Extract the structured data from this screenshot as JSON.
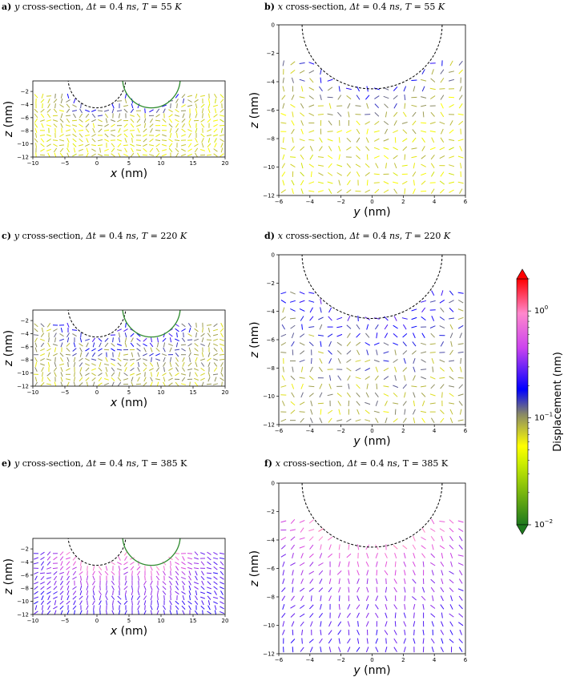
{
  "chart_data": [
    {
      "panel_id": "a",
      "type": "quiver",
      "title": {
        "letter": "a)",
        "parts": [
          "y",
          " cross-section, ",
          "Δt",
          " = 0.4 ",
          "ns",
          ", ",
          "T",
          " = 55 ",
          "K"
        ]
      },
      "title_text": "y cross-section, Δt = 0.4 ns, T = 55 K",
      "xlabel": "x (nm)",
      "ylabel": "z (nm)",
      "xlim": [
        -10,
        20
      ],
      "ylim": [
        -12,
        -0.4
      ],
      "xticks": [
        -10,
        -5,
        0,
        5,
        10,
        15,
        20
      ],
      "yticks": [
        -2,
        -4,
        -6,
        -8,
        -10,
        -12
      ],
      "circles": [
        {
          "center": [
            0,
            0
          ],
          "radius": 4.5,
          "style": "dashed",
          "color": "#000000"
        },
        {
          "center": [
            8.5,
            0
          ],
          "radius": 4.5,
          "style": "solid",
          "color": "#2e8b2e"
        }
      ],
      "displacement_level": 0.04,
      "variability": "high"
    },
    {
      "panel_id": "b",
      "type": "quiver",
      "title": {
        "letter": "b)",
        "parts": [
          "x",
          " cross-section, ",
          "Δt",
          " = 0.4 ",
          "ns",
          ", ",
          "T",
          " = 55 ",
          "K"
        ]
      },
      "title_text": "x cross-section, Δt = 0.4 ns, T = 55 K",
      "xlabel": "y (nm)",
      "ylabel": "z (nm)",
      "xlim": [
        -6,
        6
      ],
      "ylim": [
        -12,
        0
      ],
      "xticks": [
        -6,
        -4,
        -2,
        0,
        2,
        4,
        6
      ],
      "yticks": [
        0,
        -2,
        -4,
        -6,
        -8,
        -10,
        -12
      ],
      "circles": [
        {
          "center": [
            0,
            0
          ],
          "radius": 4.5,
          "style": "dashed",
          "color": "#000000"
        }
      ],
      "displacement_level": 0.04,
      "variability": "high"
    },
    {
      "panel_id": "c",
      "type": "quiver",
      "title": {
        "letter": "c)",
        "parts": [
          "y",
          " cross-section, ",
          "Δt",
          " = 0.4 ",
          "ns",
          ", ",
          "T",
          " = 220 ",
          "K"
        ]
      },
      "title_text": "y cross-section, Δt = 0.4 ns, T = 220 K",
      "xlabel": "x (nm)",
      "ylabel": "z (nm)",
      "xlim": [
        -10,
        20
      ],
      "ylim": [
        -12,
        -0.4
      ],
      "xticks": [
        -10,
        -5,
        0,
        5,
        10,
        15,
        20
      ],
      "yticks": [
        -2,
        -4,
        -6,
        -8,
        -10,
        -12
      ],
      "circles": [
        {
          "center": [
            0,
            0
          ],
          "radius": 4.5,
          "style": "dashed",
          "color": "#000000"
        },
        {
          "center": [
            8.5,
            0
          ],
          "radius": 4.5,
          "style": "solid",
          "color": "#2e8b2e"
        }
      ],
      "displacement_level": 0.06,
      "variability": "medium"
    },
    {
      "panel_id": "d",
      "type": "quiver",
      "title": {
        "letter": "d)",
        "parts": [
          "x",
          " cross-section, ",
          "Δt",
          " = 0.4 ",
          "ns",
          ", ",
          "T",
          " = 220 ",
          "K"
        ]
      },
      "title_text": "x cross-section, Δt = 0.4 ns, T = 220 K",
      "xlabel": "y (nm)",
      "ylabel": "z (nm)",
      "xlim": [
        -6,
        6
      ],
      "ylim": [
        -12,
        0
      ],
      "xticks": [
        -6,
        -4,
        -2,
        0,
        2,
        4,
        6
      ],
      "yticks": [
        0,
        -2,
        -4,
        -6,
        -8,
        -10,
        -12
      ],
      "circles": [
        {
          "center": [
            0,
            0
          ],
          "radius": 4.5,
          "style": "dashed",
          "color": "#000000"
        }
      ],
      "displacement_level": 0.06,
      "variability": "medium"
    },
    {
      "panel_id": "e",
      "type": "quiver",
      "title": {
        "letter": "e)",
        "parts": [
          "y",
          " cross-section, ",
          "Δt",
          " = 0.4 ",
          "ns",
          ", T = 385 K"
        ]
      },
      "title_text": "y cross-section, Δt = 0.4 ns, T = 385 K",
      "xlabel": "x (nm)",
      "ylabel": "z (nm)",
      "xlim": [
        -10,
        20
      ],
      "ylim": [
        -12,
        -0.4
      ],
      "xticks": [
        -10,
        -5,
        0,
        5,
        10,
        15,
        20
      ],
      "yticks": [
        -2,
        -4,
        -6,
        -8,
        -10,
        -12
      ],
      "circles": [
        {
          "center": [
            0,
            0
          ],
          "radius": 4.5,
          "style": "dashed",
          "color": "#000000"
        },
        {
          "center": [
            8.5,
            0
          ],
          "radius": 4.5,
          "style": "solid",
          "color": "#2e8b2e"
        }
      ],
      "displacement_level": 0.3,
      "variability": "low"
    },
    {
      "panel_id": "f",
      "type": "quiver",
      "title": {
        "letter": "f)",
        "parts": [
          "x",
          " cross-section, ",
          "Δt",
          " = 0.4 ",
          "ns",
          ", T = 385 K"
        ]
      },
      "title_text": "x cross-section, Δt = 0.4 ns, T = 385 K",
      "xlabel": "y (nm)",
      "ylabel": "z (nm)",
      "xlim": [
        -6,
        6
      ],
      "ylim": [
        -12,
        0
      ],
      "xticks": [
        -6,
        -4,
        -2,
        0,
        2,
        4,
        6
      ],
      "yticks": [
        0,
        -2,
        -4,
        -6,
        -8,
        -10,
        -12
      ],
      "circles": [
        {
          "center": [
            0,
            0
          ],
          "radius": 4.5,
          "style": "dashed",
          "color": "#000000"
        }
      ],
      "displacement_level": 0.3,
      "variability": "low"
    }
  ],
  "colorbar": {
    "label": "Displacement (nm)",
    "scale": "log",
    "range": [
      0.01,
      2
    ],
    "ticks": [
      {
        "base": "10",
        "exp": "0",
        "value": 1
      },
      {
        "base": "10",
        "exp": "−1",
        "value": 0.1
      },
      {
        "base": "10",
        "exp": "−2",
        "value": 0.01
      }
    ],
    "extend": "both",
    "colormap": [
      {
        "value": 0.01,
        "color": "#1e7a1e"
      },
      {
        "value": 0.035,
        "color": "#ffff00"
      },
      {
        "value": 0.08,
        "color": "#888866"
      },
      {
        "value": 0.12,
        "color": "#0000ff"
      },
      {
        "value": 0.5,
        "color": "#dd44dd"
      },
      {
        "value": 0.9,
        "color": "#ff88cc"
      },
      {
        "value": 2,
        "color": "#ff0000"
      }
    ]
  }
}
